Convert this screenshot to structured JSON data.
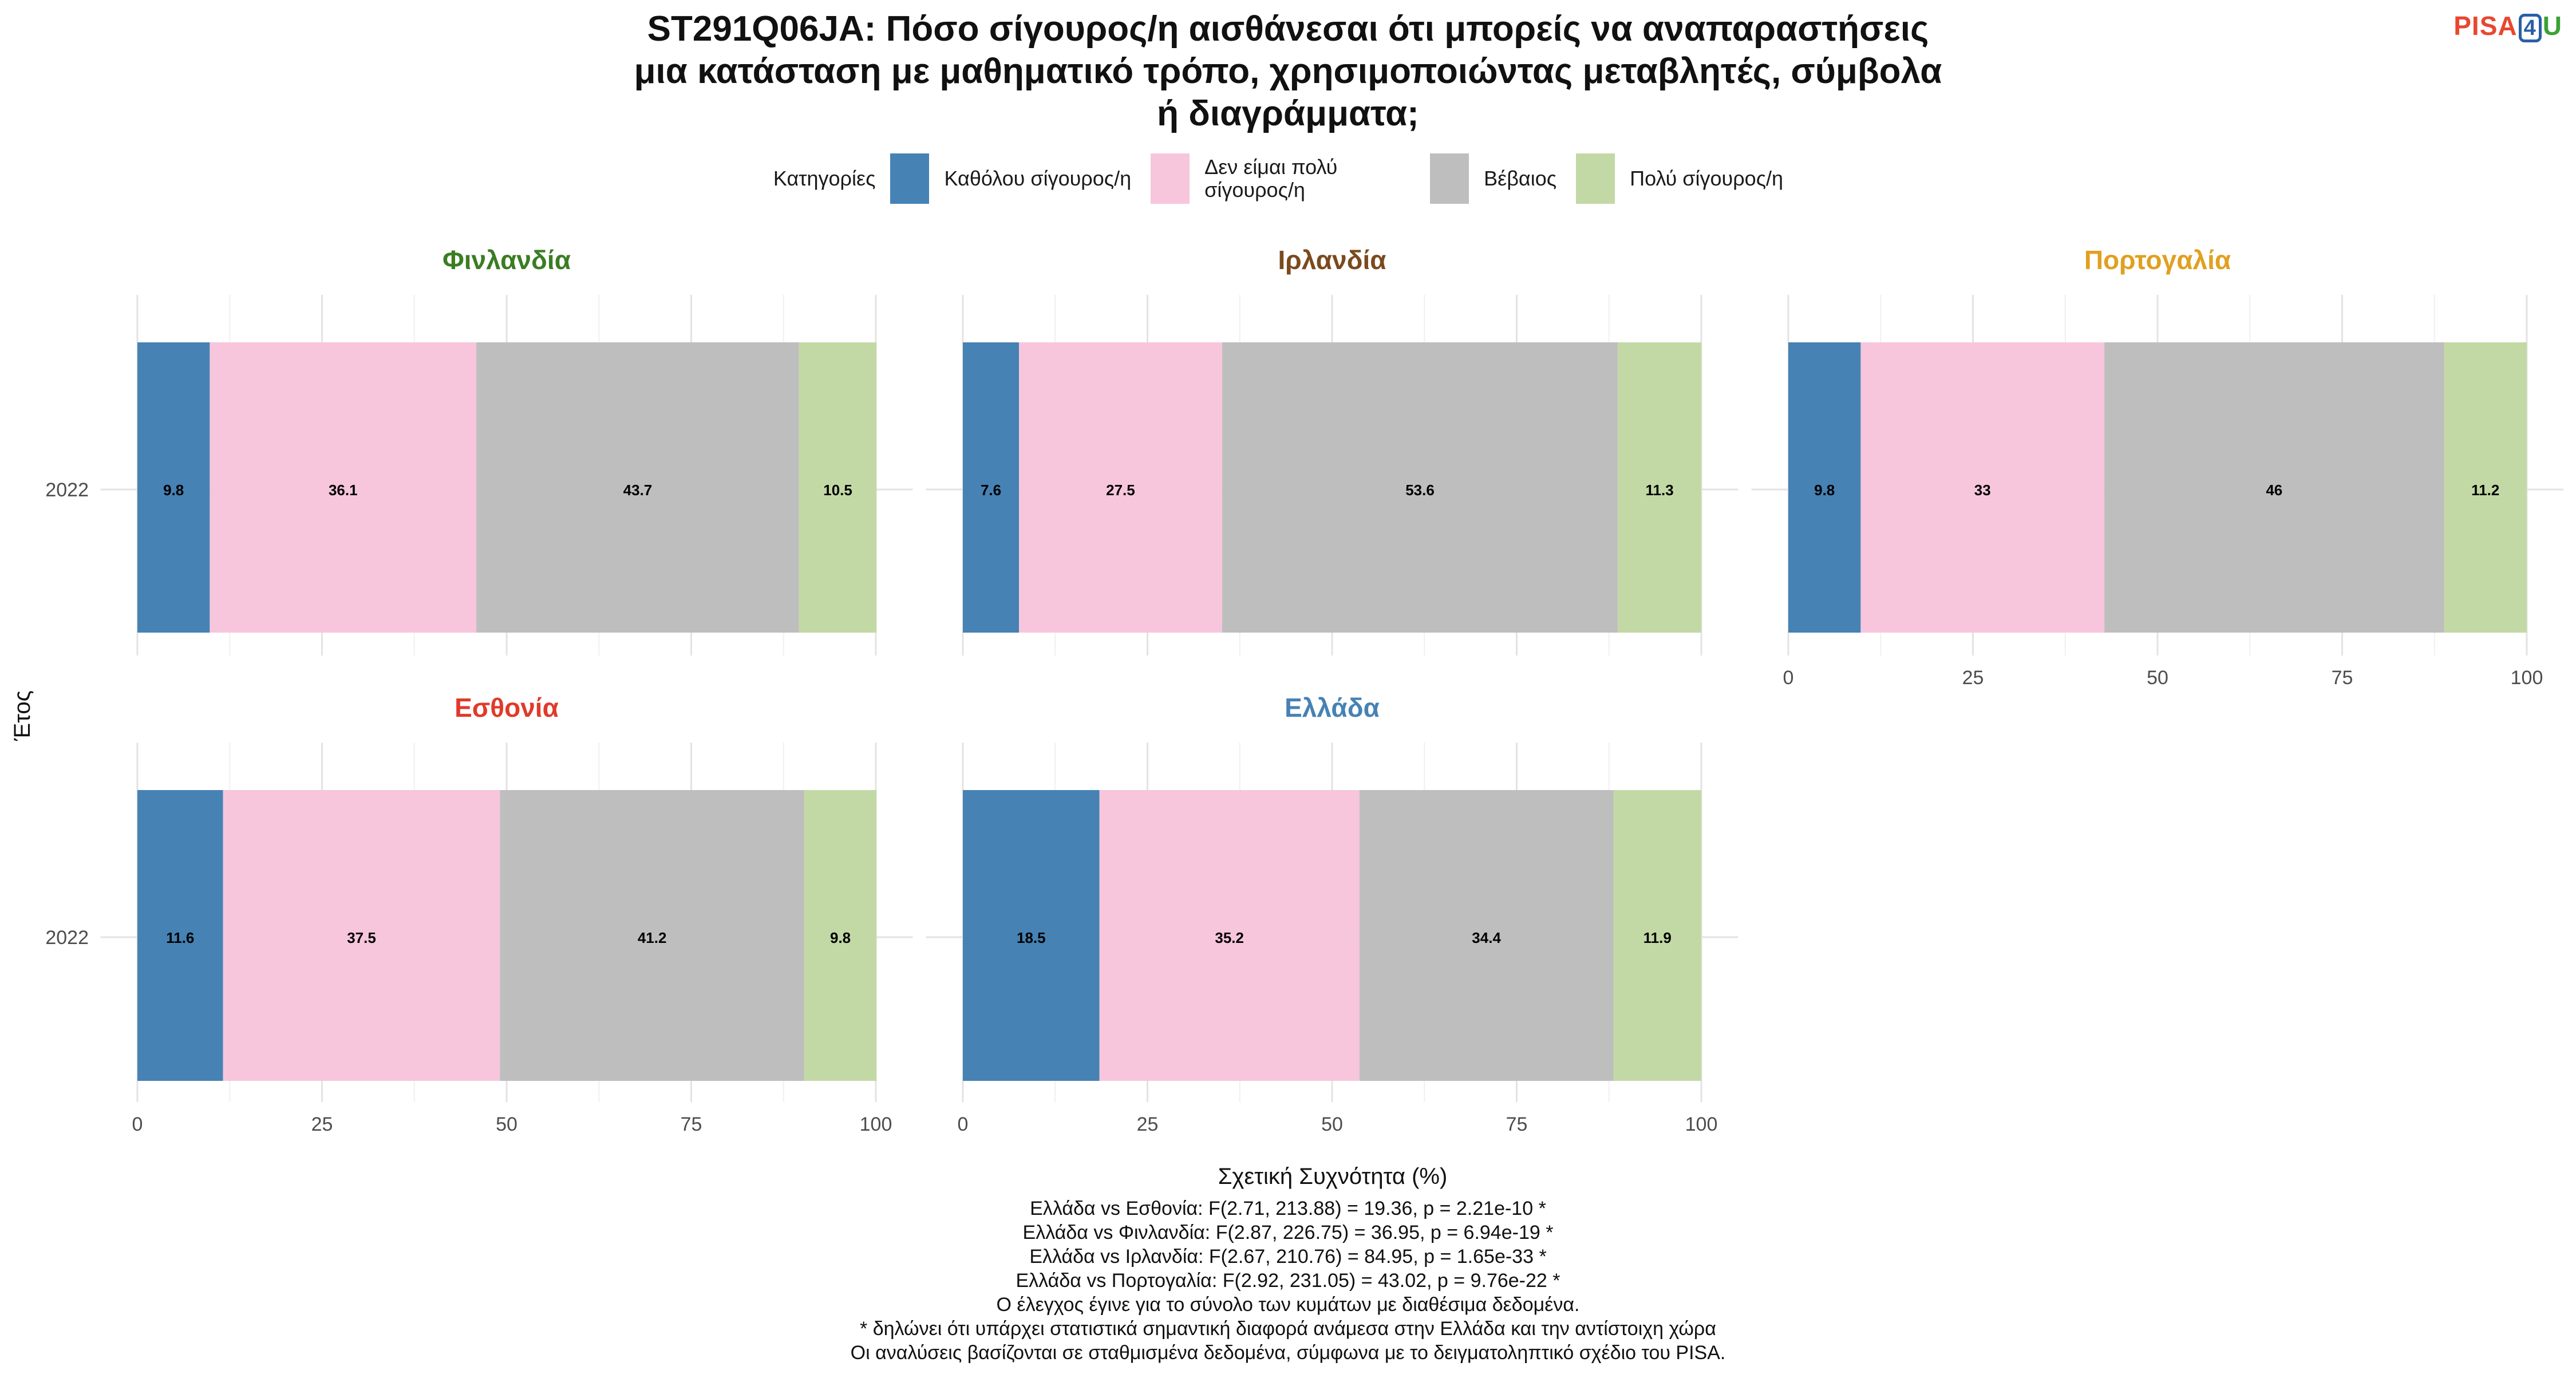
{
  "title_lines": [
    "ST291Q06JA: Πόσο σίγουρος/η αισθάνεσαι ότι μπορείς να αναπαραστήσεις",
    "μια κατάσταση με μαθηματικό τρόπο, χρησιμοποιώντας μεταβλητές, σύμβολα",
    "ή διαγράμματα;"
  ],
  "logo": {
    "part1": "PISA",
    "part2": "4",
    "part3": "U"
  },
  "legend": {
    "title": "Κατηγορίες",
    "items": [
      {
        "label": "Καθόλου σίγουρος/η",
        "color": "#4682b4"
      },
      {
        "label": "Δεν είμαι πολύ σίγουρος/η",
        "color": "#f7c6dc"
      },
      {
        "label": "Βέβαιος",
        "color": "#bebebe"
      },
      {
        "label": "Πολύ σίγουρος/η",
        "color": "#c3d9a5"
      }
    ]
  },
  "chart_data": {
    "type": "bar",
    "orientation": "horizontal-stacked",
    "xlabel": "Σχετική Συχνότητα (%)",
    "ylabel": "Έτος",
    "xlim": [
      0,
      100
    ],
    "x_ticks": [
      0,
      25,
      50,
      75,
      100
    ],
    "categories": [
      "2022"
    ],
    "series_names": [
      "Καθόλου σίγουρος/η",
      "Δεν είμαι πολύ σίγουρος/η",
      "Βέβαιος",
      "Πολύ σίγουρος/η"
    ],
    "grid": true,
    "panels": [
      {
        "name": "Φινλανδία",
        "color": "#3a7d22",
        "year": "2022",
        "values": [
          9.8,
          36.1,
          43.7,
          10.5
        ],
        "labels": [
          "9.8",
          "36.1",
          "43.7",
          "10.5"
        ]
      },
      {
        "name": "Ιρλανδία",
        "color": "#7a4a1e",
        "year": "2022",
        "values": [
          7.6,
          27.5,
          53.6,
          11.3
        ],
        "labels": [
          "7.6",
          "27.5",
          "53.6",
          "11.3"
        ]
      },
      {
        "name": "Πορτογαλία",
        "color": "#e0a020",
        "year": "2022",
        "values": [
          9.8,
          33,
          46,
          11.2
        ],
        "labels": [
          "9.8",
          "33",
          "46",
          "11.2"
        ]
      },
      {
        "name": "Εσθονία",
        "color": "#e03a2a",
        "year": "2022",
        "values": [
          11.6,
          37.5,
          41.2,
          9.8
        ],
        "labels": [
          "11.6",
          "37.5",
          "41.2",
          "9.8"
        ]
      },
      {
        "name": "Ελλάδα",
        "color": "#4682b4",
        "year": "2022",
        "values": [
          18.5,
          35.2,
          34.4,
          11.9
        ],
        "labels": [
          "18.5",
          "35.2",
          "34.4",
          "11.9"
        ]
      }
    ]
  },
  "footnotes": [
    "Ελλάδα vs Εσθονία: F(2.71, 213.88) = 19.36, p = 2.21e-10 *",
    "Ελλάδα vs Φινλανδία: F(2.87, 226.75) = 36.95, p = 6.94e-19 *",
    "Ελλάδα vs Ιρλανδία: F(2.67, 210.76) = 84.95, p = 1.65e-33 *",
    "Ελλάδα vs Πορτογαλία: F(2.92, 231.05) = 43.02, p = 9.76e-22 *",
    "Ο έλεγχος έγινε για το σύνολο των κυμάτων με διαθέσιμα δεδομένα.",
    "* δηλώνει ότι υπάρχει στατιστικά σημαντική διαφορά ανάμεσα στην Ελλάδα και την αντίστοιχη χώρα",
    "Οι αναλύσεις βασίζονται σε σταθμισμένα δεδομένα, σύμφωνα με το δειγματοληπτικό σχέδιο του PISA."
  ]
}
